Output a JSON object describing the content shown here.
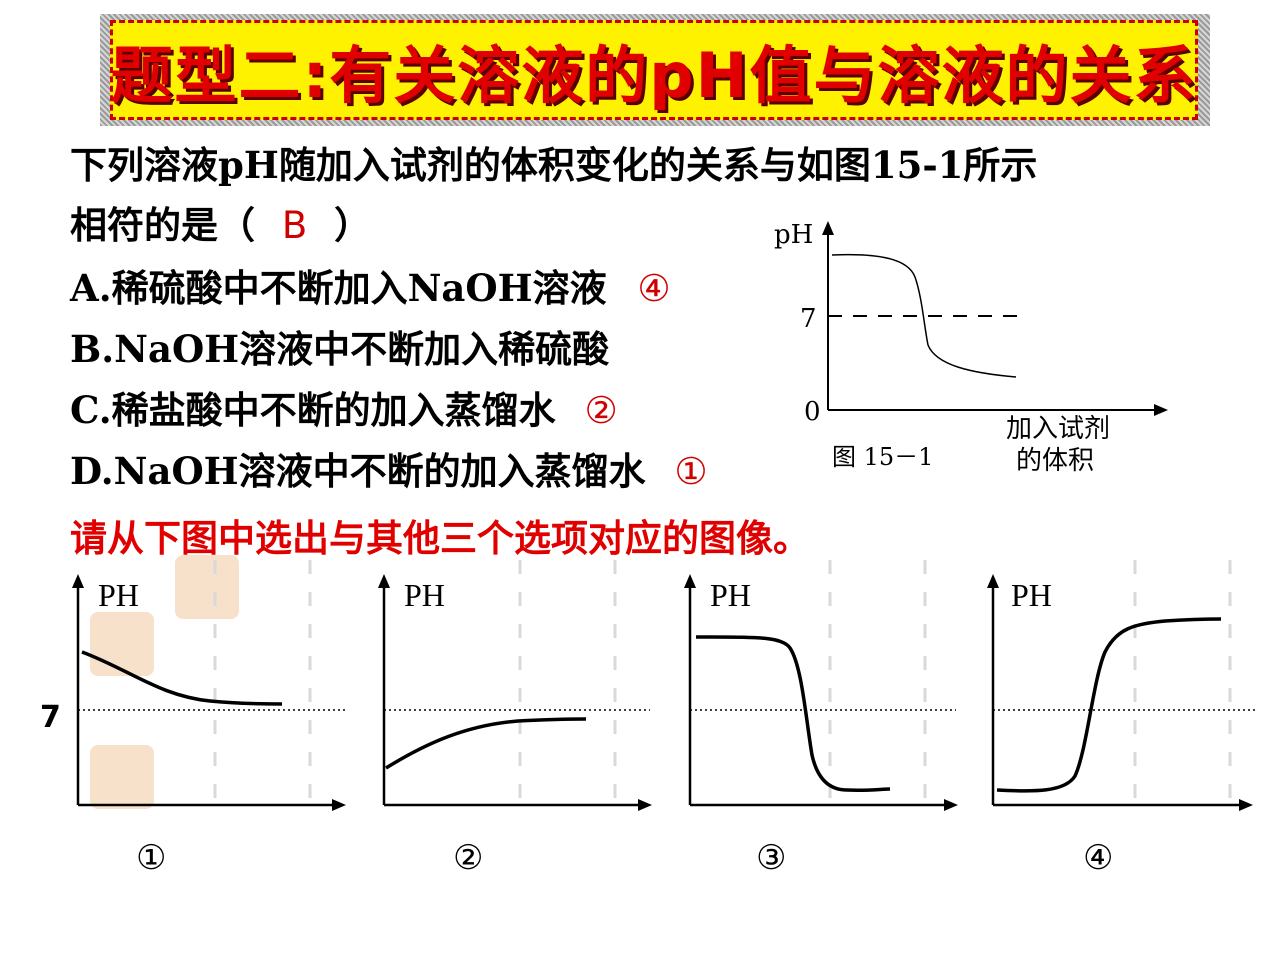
{
  "banner": {
    "title": "题型二:有关溶液的pH值与溶液的关系"
  },
  "question": {
    "line1": "下列溶液pH随加入试剂的体积变化的关系与如图15-1所示",
    "line2_prefix": "相符的是（",
    "answer": "B",
    "line2_suffix": "）",
    "options": [
      {
        "text": "A.稀硫酸中不断加入NaOH溶液",
        "mark": "④"
      },
      {
        "text": "B.NaOH溶液中不断加入稀硫酸",
        "mark": ""
      },
      {
        "text": "C.稀盐酸中不断的加入蒸馏水",
        "mark": "②"
      },
      {
        "text": "D.NaOH溶液中不断的加入蒸馏水",
        "mark": "①"
      }
    ],
    "instruction": "请从下图中选出与其他三个选项对应的图像。"
  },
  "reference_figure": {
    "y_axis_label": "pH",
    "tick_7": "7",
    "origin": "0",
    "x_label_line1": "加入试剂",
    "x_label_line2": "的体积",
    "caption": "图 15－1"
  },
  "small_graphs": {
    "y_label": "PH",
    "seven_label": "7",
    "numbers": [
      "①",
      "②",
      "③",
      "④"
    ]
  },
  "colors": {
    "accent_red": "#e00000",
    "banner_yellow": "#fff200"
  }
}
